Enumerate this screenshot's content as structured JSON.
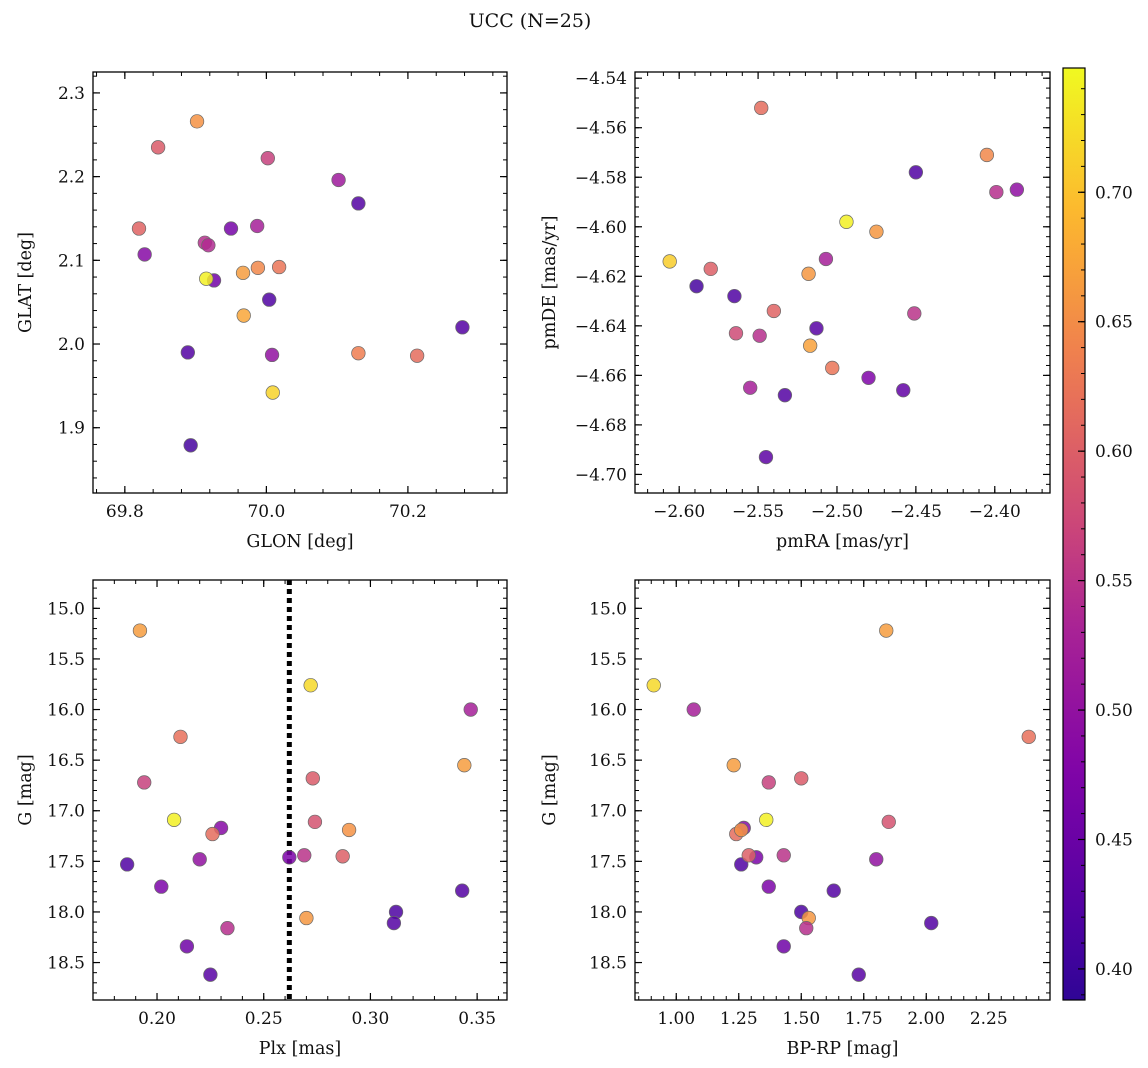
{
  "figure": {
    "title": "UCC (N=25)",
    "colorbar_ticks": [
      "0.40",
      "0.45",
      "0.50",
      "0.55",
      "0.60",
      "0.65",
      "0.70"
    ]
  },
  "chart_data": [
    {
      "type": "scatter",
      "panel": "top-left",
      "xlabel": "GLON [deg]",
      "ylabel": "GLAT [deg]",
      "xlim": [
        69.755,
        70.34
      ],
      "ylim": [
        1.822,
        2.325
      ],
      "xticks": [
        "69.8",
        "70.0",
        "70.2"
      ],
      "yticks": [
        "1.9",
        "2.0",
        "2.1",
        "2.2",
        "2.3"
      ],
      "x": [
        69.902,
        69.847,
        70.002,
        70.102,
        70.13,
        69.82,
        69.95,
        69.987,
        69.913,
        69.918,
        69.828,
        69.926,
        69.915,
        69.967,
        69.988,
        70.018,
        69.968,
        70.004,
        70.277,
        69.889,
        70.008,
        70.13,
        70.213,
        70.009,
        69.893
      ],
      "y": [
        2.266,
        2.235,
        2.222,
        2.196,
        2.168,
        2.138,
        2.138,
        2.141,
        2.121,
        2.118,
        2.107,
        2.076,
        2.078,
        2.085,
        2.091,
        2.092,
        2.034,
        2.053,
        2.02,
        1.99,
        1.987,
        1.989,
        1.986,
        1.942,
        1.879
      ],
      "c": [
        0.655,
        0.595,
        0.565,
        0.515,
        0.425,
        0.605,
        0.465,
        0.525,
        0.545,
        0.54,
        0.485,
        0.46,
        0.74,
        0.665,
        0.645,
        0.625,
        0.675,
        0.42,
        0.425,
        0.425,
        0.5,
        0.635,
        0.615,
        0.715,
        0.41
      ]
    },
    {
      "type": "scatter",
      "panel": "top-right",
      "xlabel": "pmRA [mas/yr]",
      "ylabel": "pmDE [mas/yr]",
      "xlim": [
        -2.628,
        -2.365
      ],
      "ylim": [
        -4.7075,
        -4.5375
      ],
      "xticks": [
        "−2.60",
        "−2.55",
        "−2.50",
        "−2.45",
        "−2.40"
      ],
      "yticks": [
        "−4.54",
        "−4.56",
        "−4.58",
        "−4.60",
        "−4.62",
        "−4.64",
        "−4.66",
        "−4.68",
        "−4.70"
      ],
      "x": [
        -2.548,
        -2.405,
        -2.45,
        -2.399,
        -2.386,
        -2.494,
        -2.475,
        -2.606,
        -2.58,
        -2.518,
        -2.507,
        -2.589,
        -2.565,
        -2.54,
        -2.451,
        -2.564,
        -2.549,
        -2.513,
        -2.517,
        -2.503,
        -2.555,
        -2.48,
        -2.458,
        -2.533,
        -2.545
      ],
      "y": [
        -4.552,
        -4.571,
        -4.578,
        -4.586,
        -4.585,
        -4.598,
        -4.602,
        -4.614,
        -4.617,
        -4.619,
        -4.613,
        -4.624,
        -4.628,
        -4.634,
        -4.635,
        -4.643,
        -4.644,
        -4.641,
        -4.648,
        -4.657,
        -4.665,
        -4.661,
        -4.666,
        -4.668,
        -4.693
      ],
      "c": [
        0.615,
        0.645,
        0.42,
        0.545,
        0.495,
        0.74,
        0.66,
        0.71,
        0.6,
        0.66,
        0.525,
        0.41,
        0.42,
        0.605,
        0.55,
        0.575,
        0.545,
        0.43,
        0.67,
        0.625,
        0.525,
        0.475,
        0.44,
        0.425,
        0.435
      ]
    },
    {
      "type": "scatter",
      "panel": "bottom-left",
      "xlabel": "Plx [mas]",
      "ylabel": "G [mag]",
      "xlim": [
        0.17,
        0.364
      ],
      "ylim": [
        18.87,
        14.72
      ],
      "y_inverted": true,
      "xticks": [
        "0.20",
        "0.25",
        "0.30",
        "0.35"
      ],
      "yticks": [
        "15.0",
        "15.5",
        "16.0",
        "16.5",
        "17.0",
        "17.5",
        "18.0",
        "18.5"
      ],
      "vline": {
        "x": 0.262,
        "style": "dotted"
      },
      "x": [
        0.192,
        0.272,
        0.347,
        0.211,
        0.344,
        0.194,
        0.273,
        0.208,
        0.274,
        0.23,
        0.226,
        0.29,
        0.186,
        0.22,
        0.262,
        0.269,
        0.287,
        0.202,
        0.343,
        0.27,
        0.312,
        0.311,
        0.214,
        0.233,
        0.225
      ],
      "y": [
        15.22,
        15.76,
        16.0,
        16.27,
        16.55,
        16.72,
        16.68,
        17.09,
        17.11,
        17.17,
        17.23,
        17.19,
        17.53,
        17.48,
        17.46,
        17.44,
        17.45,
        17.75,
        17.79,
        18.06,
        18.0,
        18.11,
        18.34,
        18.16,
        18.62
      ],
      "c": [
        0.665,
        0.72,
        0.525,
        0.62,
        0.665,
        0.565,
        0.595,
        0.74,
        0.585,
        0.485,
        0.615,
        0.655,
        0.42,
        0.5,
        0.47,
        0.55,
        0.6,
        0.47,
        0.425,
        0.66,
        0.415,
        0.425,
        0.455,
        0.545,
        0.43
      ]
    },
    {
      "type": "scatter",
      "panel": "bottom-right",
      "xlabel": "BP-RP [mag]",
      "ylabel": "G [mag]",
      "xlim": [
        0.835,
        2.495
      ],
      "ylim": [
        18.87,
        14.72
      ],
      "y_inverted": true,
      "xticks": [
        "1.00",
        "1.25",
        "1.50",
        "1.75",
        "2.00",
        "2.25"
      ],
      "yticks": [
        "15.0",
        "15.5",
        "16.0",
        "16.5",
        "17.0",
        "17.5",
        "18.0",
        "18.5"
      ],
      "x": [
        1.84,
        0.91,
        1.07,
        2.41,
        1.23,
        1.37,
        1.5,
        1.36,
        1.85,
        1.27,
        1.24,
        1.26,
        1.26,
        1.32,
        1.29,
        1.43,
        1.8,
        1.37,
        1.63,
        1.5,
        1.53,
        2.02,
        1.43,
        1.52,
        1.73
      ],
      "y": [
        15.22,
        15.76,
        16.0,
        16.27,
        16.55,
        16.72,
        16.68,
        17.09,
        17.11,
        17.17,
        17.23,
        17.19,
        17.53,
        17.46,
        17.44,
        17.44,
        17.48,
        17.75,
        17.79,
        18.0,
        18.06,
        18.11,
        18.34,
        18.16,
        18.62
      ],
      "c": [
        0.665,
        0.72,
        0.525,
        0.62,
        0.665,
        0.565,
        0.595,
        0.74,
        0.585,
        0.485,
        0.615,
        0.655,
        0.42,
        0.47,
        0.6,
        0.55,
        0.5,
        0.47,
        0.425,
        0.415,
        0.66,
        0.425,
        0.455,
        0.545,
        0.43
      ]
    }
  ]
}
